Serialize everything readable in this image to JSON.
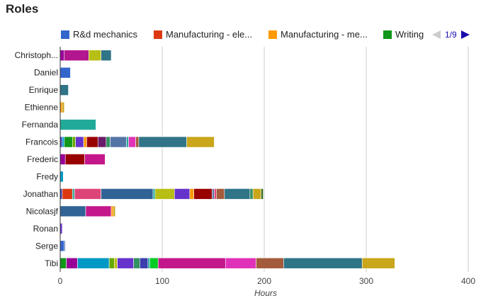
{
  "chart_data": {
    "type": "bar",
    "orientation": "horizontal",
    "stacked": true,
    "title": "Roles",
    "xlabel": "Hours",
    "ylabel": "",
    "xlim": [
      0,
      400
    ],
    "xticks": [
      0,
      100,
      200,
      300,
      400
    ],
    "grid": true,
    "legend_position": "top",
    "legend": {
      "visible_entries": [
        "R&d mechanics",
        "Manufacturing - ele...",
        "Manufacturing - me...",
        "Writing"
      ],
      "page_label": "1/9"
    },
    "categories": [
      "Christoph...",
      "Daniel",
      "Enrique",
      "Ethienne",
      "Fernanda",
      "Francois",
      "Frederic",
      "Fredy",
      "Jonathan",
      "Nicolasjf",
      "Ronan",
      "Serge",
      "Tibi"
    ],
    "stacks": [
      [
        {
          "color": "#990099",
          "value": 4
        },
        {
          "color": "#b3168e",
          "value": 24
        },
        {
          "color": "#b7bf14",
          "value": 12
        },
        {
          "color": "#2f7487",
          "value": 10
        }
      ],
      [
        {
          "color": "#3366cc",
          "value": 10
        }
      ],
      [
        {
          "color": "#2f7487",
          "value": 8
        }
      ],
      [
        {
          "color": "#ff9900",
          "value": 2
        },
        {
          "color": "#c9a61a",
          "value": 2
        }
      ],
      [
        {
          "color": "#22aa99",
          "value": 35
        }
      ],
      [
        {
          "color": "#3b3eac",
          "value": 2
        },
        {
          "color": "#0099c6",
          "value": 2
        },
        {
          "color": "#109618",
          "value": 8
        },
        {
          "color": "#66aa00",
          "value": 3
        },
        {
          "color": "#6633cc",
          "value": 8
        },
        {
          "color": "#ff9900",
          "value": 3
        },
        {
          "color": "#990000",
          "value": 11
        },
        {
          "color": "#6b1b6b",
          "value": 8
        },
        {
          "color": "#329262",
          "value": 4
        },
        {
          "color": "#5574a6",
          "value": 16
        },
        {
          "color": "#22aa99",
          "value": 2
        },
        {
          "color": "#e032b8",
          "value": 7
        },
        {
          "color": "#a45b3b",
          "value": 3
        },
        {
          "color": "#2f7487",
          "value": 47
        },
        {
          "color": "#c9a61a",
          "value": 27
        }
      ],
      [
        {
          "color": "#990099",
          "value": 5
        },
        {
          "color": "#990000",
          "value": 19
        },
        {
          "color": "#c4178c",
          "value": 20
        }
      ],
      [
        {
          "color": "#0099c6",
          "value": 3
        }
      ],
      [
        {
          "color": "#3b3eac",
          "value": 2
        },
        {
          "color": "#dc3912",
          "value": 10
        },
        {
          "color": "#22aa99",
          "value": 2
        },
        {
          "color": "#dd4477",
          "value": 26
        },
        {
          "color": "#316395",
          "value": 51
        },
        {
          "color": "#22aa99",
          "value": 2
        },
        {
          "color": "#b7bf14",
          "value": 19
        },
        {
          "color": "#6633cc",
          "value": 15
        },
        {
          "color": "#ff9900",
          "value": 4
        },
        {
          "color": "#990000",
          "value": 18
        },
        {
          "color": "#5574a6",
          "value": 2
        },
        {
          "color": "#dd4477",
          "value": 2
        },
        {
          "color": "#a45b3b",
          "value": 8
        },
        {
          "color": "#2f7487",
          "value": 25
        },
        {
          "color": "#329262",
          "value": 3
        },
        {
          "color": "#c9a61a",
          "value": 8
        },
        {
          "color": "#2d6b1d",
          "value": 2
        }
      ],
      [
        {
          "color": "#316395",
          "value": 25
        },
        {
          "color": "#c4178c",
          "value": 25
        },
        {
          "color": "#ff9900",
          "value": 2
        },
        {
          "color": "#c9a61a",
          "value": 2
        }
      ],
      [
        {
          "color": "#6633cc",
          "value": 2
        }
      ],
      [
        {
          "color": "#3366cc",
          "value": 4
        },
        {
          "color": "#5574a6",
          "value": 1
        }
      ],
      [
        {
          "color": "#109618",
          "value": 6
        },
        {
          "color": "#990099",
          "value": 11
        },
        {
          "color": "#0099c6",
          "value": 31
        },
        {
          "color": "#66aa00",
          "value": 5
        },
        {
          "color": "#b7bf14",
          "value": 3
        },
        {
          "color": "#6633cc",
          "value": 16
        },
        {
          "color": "#329262",
          "value": 6
        },
        {
          "color": "#3b3eac",
          "value": 8
        },
        {
          "color": "#22aa99",
          "value": 2
        },
        {
          "color": "#00cc22",
          "value": 8
        },
        {
          "color": "#c4178c",
          "value": 66
        },
        {
          "color": "#e032b8",
          "value": 30
        },
        {
          "color": "#a45b3b",
          "value": 27
        },
        {
          "color": "#2f7487",
          "value": 77
        },
        {
          "color": "#c9a61a",
          "value": 32
        }
      ]
    ]
  },
  "colors": {
    "legend": [
      "#3366cc",
      "#dc3912",
      "#ff9900",
      "#109618"
    ],
    "grid": "#cccccc",
    "axis": "#333333",
    "arrow_disabled": "#cccccc",
    "arrow_enabled": "#1a0dab"
  }
}
